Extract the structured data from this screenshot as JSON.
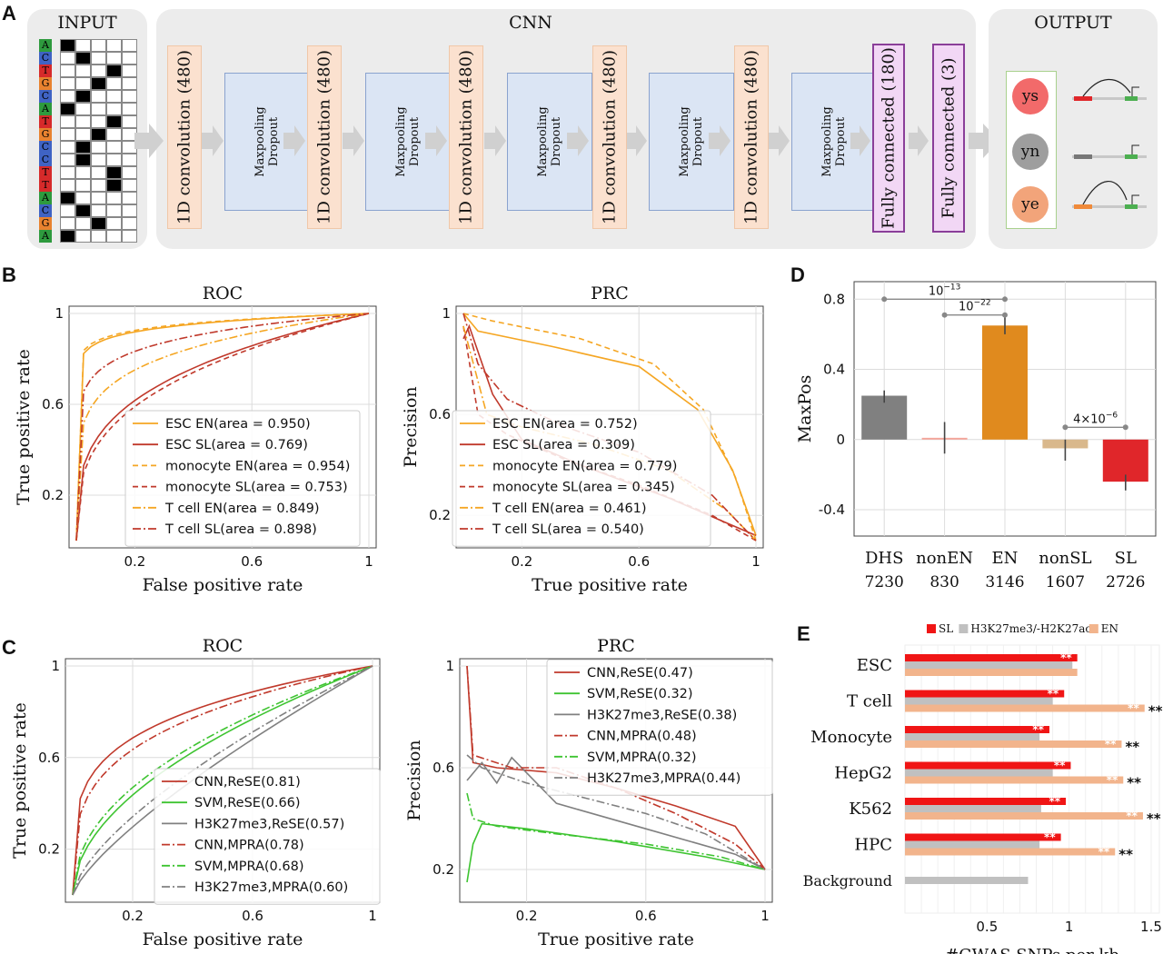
{
  "panel_labels": {
    "a": "A",
    "b": "B",
    "c": "C",
    "d": "D",
    "e": "E"
  },
  "panel_a": {
    "input_title": "INPUT",
    "cnn_title": "CNN",
    "output_title": "OUTPUT",
    "sequence": [
      "A",
      "C",
      "T",
      "G",
      "C",
      "A",
      "T",
      "G",
      "C",
      "C",
      "T",
      "T",
      "A",
      "C",
      "G",
      "A"
    ],
    "base_colors": {
      "A": "#2e9a3e",
      "C": "#3f63c4",
      "G": "#e8822f",
      "T": "#d62a2a"
    },
    "layers": [
      {
        "kind": "conv",
        "label": "1D convolution (480)"
      },
      {
        "kind": "pool",
        "label1": "Maxpooling",
        "label2": "Dropout"
      },
      {
        "kind": "conv",
        "label": "1D convolution (480)"
      },
      {
        "kind": "pool",
        "label1": "Maxpooling",
        "label2": "Dropout"
      },
      {
        "kind": "conv",
        "label": "1D convolution (480)"
      },
      {
        "kind": "pool",
        "label1": "Maxpooling",
        "label2": "Dropout"
      },
      {
        "kind": "conv",
        "label": "1D convolution (480)"
      },
      {
        "kind": "pool",
        "label1": "Maxpooling",
        "label2": "Dropout"
      },
      {
        "kind": "conv",
        "label": "1D convolution (480)"
      },
      {
        "kind": "pool",
        "label1": "Maxpooling",
        "label2": "Dropout"
      },
      {
        "kind": "fc",
        "label": "Fully connected (180)"
      },
      {
        "kind": "fc",
        "label": "Fully connected (3)"
      }
    ],
    "outputs": [
      {
        "label": "ys",
        "color": "#f26a6a"
      },
      {
        "label": "yn",
        "color": "#9e9e9e"
      },
      {
        "label": "ye",
        "color": "#f2a47a"
      }
    ]
  },
  "chart_data": [
    {
      "id": "B-ROC",
      "type": "line",
      "title": "ROC",
      "xlabel": "False positive rate",
      "ylabel": "True positive rate",
      "xlim": [
        0,
        1
      ],
      "ylim": [
        0,
        1
      ],
      "xticks": [
        "0.2",
        "0.6",
        "1"
      ],
      "yticks": [
        "0.2",
        "0.6",
        "1"
      ],
      "grid": true,
      "legend_position": "bottom-right",
      "series": [
        {
          "name": "ESC EN(area = 0.950)",
          "color": "#f5a623",
          "dash": "solid",
          "curve": "roc",
          "auc": 0.95
        },
        {
          "name": "ESC SL(area = 0.769)",
          "color": "#c0392b",
          "dash": "solid",
          "curve": "roc",
          "auc": 0.769
        },
        {
          "name": "monocyte EN(area = 0.954)",
          "color": "#f5a623",
          "dash": "dashed",
          "curve": "roc",
          "auc": 0.954
        },
        {
          "name": "monocyte SL(area = 0.753)",
          "color": "#c0392b",
          "dash": "dashed",
          "curve": "roc",
          "auc": 0.753
        },
        {
          "name": "T cell EN(area = 0.849)",
          "color": "#f5a623",
          "dash": "dashdot",
          "curve": "roc",
          "auc": 0.849
        },
        {
          "name": "T cell SL(area = 0.898)",
          "color": "#c0392b",
          "dash": "dashdot",
          "curve": "roc",
          "auc": 0.898
        }
      ]
    },
    {
      "id": "B-PRC",
      "type": "line",
      "title": "PRC",
      "xlabel": "True positive rate",
      "ylabel": "Precision",
      "xlim": [
        0,
        1
      ],
      "ylim": [
        0.1,
        1
      ],
      "xticks": [
        "0.2",
        "0.6",
        "1"
      ],
      "yticks": [
        "0.2",
        "0.6",
        "1"
      ],
      "grid": true,
      "legend_position": "center",
      "series": [
        {
          "name": "ESC EN(area = 0.752)",
          "color": "#f5a623",
          "dash": "solid",
          "points": [
            [
              0,
              1
            ],
            [
              0.05,
              0.93
            ],
            [
              0.3,
              0.87
            ],
            [
              0.6,
              0.79
            ],
            [
              0.8,
              0.62
            ],
            [
              0.92,
              0.38
            ],
            [
              1,
              0.12
            ]
          ]
        },
        {
          "name": "ESC SL(area = 0.309)",
          "color": "#c0392b",
          "dash": "solid",
          "points": [
            [
              0,
              0.9
            ],
            [
              0.02,
              0.95
            ],
            [
              0.1,
              0.68
            ],
            [
              0.2,
              0.5
            ],
            [
              0.4,
              0.4
            ],
            [
              0.7,
              0.27
            ],
            [
              0.9,
              0.17
            ],
            [
              1,
              0.12
            ]
          ]
        },
        {
          "name": "monocyte EN(area = 0.779)",
          "color": "#f5a623",
          "dash": "dashed",
          "points": [
            [
              0,
              1
            ],
            [
              0.1,
              0.97
            ],
            [
              0.4,
              0.9
            ],
            [
              0.65,
              0.8
            ],
            [
              0.82,
              0.62
            ],
            [
              0.93,
              0.35
            ],
            [
              1,
              0.1
            ]
          ]
        },
        {
          "name": "monocyte SL(area = 0.345)",
          "color": "#c0392b",
          "dash": "dashed",
          "points": [
            [
              0,
              0.95
            ],
            [
              0.05,
              0.6
            ],
            [
              0.15,
              0.52
            ],
            [
              0.35,
              0.42
            ],
            [
              0.6,
              0.32
            ],
            [
              0.85,
              0.2
            ],
            [
              1,
              0.1
            ]
          ]
        },
        {
          "name": "T cell EN(area = 0.461)",
          "color": "#f5a623",
          "dash": "dashdot",
          "points": [
            [
              0,
              0.95
            ],
            [
              0.08,
              0.6
            ],
            [
              0.2,
              0.55
            ],
            [
              0.45,
              0.48
            ],
            [
              0.7,
              0.38
            ],
            [
              0.9,
              0.22
            ],
            [
              1,
              0.1
            ]
          ]
        },
        {
          "name": "T cell SL(area = 0.540)",
          "color": "#c0392b",
          "dash": "dashdot",
          "points": [
            [
              0,
              1
            ],
            [
              0.05,
              0.8
            ],
            [
              0.15,
              0.66
            ],
            [
              0.35,
              0.55
            ],
            [
              0.6,
              0.45
            ],
            [
              0.85,
              0.28
            ],
            [
              1,
              0.1
            ]
          ]
        }
      ]
    },
    {
      "id": "C-ROC",
      "type": "line",
      "title": "ROC",
      "xlabel": "False positive rate",
      "ylabel": "True positive rate",
      "xlim": [
        0,
        1
      ],
      "ylim": [
        0,
        1
      ],
      "xticks": [
        "0.2",
        "0.6",
        "1"
      ],
      "yticks": [
        "0.2",
        "0.6",
        "1"
      ],
      "grid": true,
      "legend_position": "bottom-right",
      "series": [
        {
          "name": "CNN,ReSE(0.81)",
          "color": "#c0392b",
          "dash": "solid",
          "curve": "roc",
          "auc": 0.81
        },
        {
          "name": "SVM,ReSE(0.66)",
          "color": "#3ec431",
          "dash": "solid",
          "curve": "roc",
          "auc": 0.66
        },
        {
          "name": "H3K27me3,ReSE(0.57)",
          "color": "#808080",
          "dash": "solid",
          "curve": "roc",
          "auc": 0.57
        },
        {
          "name": "CNN,MPRA(0.78)",
          "color": "#c0392b",
          "dash": "dashdot",
          "curve": "roc",
          "auc": 0.78
        },
        {
          "name": "SVM,MPRA(0.68)",
          "color": "#3ec431",
          "dash": "dashdot",
          "curve": "roc",
          "auc": 0.68
        },
        {
          "name": "H3K27me3,MPRA(0.60)",
          "color": "#808080",
          "dash": "dashdot",
          "curve": "roc",
          "auc": 0.6
        }
      ]
    },
    {
      "id": "C-PRC",
      "type": "line",
      "title": "PRC",
      "xlabel": "True positive rate",
      "ylabel": "Precision",
      "xlim": [
        0,
        1
      ],
      "ylim": [
        0.1,
        1
      ],
      "xticks": [
        "0.2",
        "0.6",
        "1"
      ],
      "yticks": [
        "0.2",
        "0.6",
        "1"
      ],
      "grid": true,
      "legend_position": "top-right",
      "series": [
        {
          "name": "CNN,ReSE(0.47)",
          "color": "#c0392b",
          "dash": "solid",
          "points": [
            [
              0,
              1
            ],
            [
              0.02,
              0.62
            ],
            [
              0.1,
              0.6
            ],
            [
              0.3,
              0.58
            ],
            [
              0.5,
              0.52
            ],
            [
              0.7,
              0.45
            ],
            [
              0.9,
              0.37
            ],
            [
              1,
              0.2
            ]
          ]
        },
        {
          "name": "SVM,ReSE(0.32)",
          "color": "#3ec431",
          "dash": "solid",
          "points": [
            [
              0,
              0.15
            ],
            [
              0.02,
              0.3
            ],
            [
              0.05,
              0.38
            ],
            [
              0.2,
              0.36
            ],
            [
              0.5,
              0.31
            ],
            [
              0.8,
              0.25
            ],
            [
              1,
              0.2
            ]
          ]
        },
        {
          "name": "H3K27me3,ReSE(0.38)",
          "color": "#808080",
          "dash": "solid",
          "points": [
            [
              0,
              0.55
            ],
            [
              0.05,
              0.62
            ],
            [
              0.1,
              0.54
            ],
            [
              0.15,
              0.64
            ],
            [
              0.3,
              0.46
            ],
            [
              0.6,
              0.36
            ],
            [
              0.9,
              0.26
            ],
            [
              1,
              0.2
            ]
          ]
        },
        {
          "name": "CNN,MPRA(0.48)",
          "color": "#c0392b",
          "dash": "dashdot",
          "points": [
            [
              0,
              1
            ],
            [
              0.02,
              0.65
            ],
            [
              0.15,
              0.6
            ],
            [
              0.3,
              0.6
            ],
            [
              0.5,
              0.52
            ],
            [
              0.7,
              0.42
            ],
            [
              0.9,
              0.3
            ],
            [
              1,
              0.2
            ]
          ]
        },
        {
          "name": "SVM,MPRA(0.32)",
          "color": "#3ec431",
          "dash": "dashdot",
          "points": [
            [
              0,
              0.5
            ],
            [
              0.02,
              0.4
            ],
            [
              0.1,
              0.37
            ],
            [
              0.3,
              0.34
            ],
            [
              0.6,
              0.3
            ],
            [
              0.85,
              0.25
            ],
            [
              1,
              0.2
            ]
          ]
        },
        {
          "name": "H3K27me3,MPRA(0.44)",
          "color": "#808080",
          "dash": "dashdot",
          "points": [
            [
              0,
              0.65
            ],
            [
              0.05,
              0.6
            ],
            [
              0.2,
              0.54
            ],
            [
              0.4,
              0.48
            ],
            [
              0.6,
              0.42
            ],
            [
              0.8,
              0.34
            ],
            [
              1,
              0.2
            ]
          ]
        }
      ]
    },
    {
      "id": "D",
      "type": "bar",
      "ylabel": "MaxPos",
      "ylim": [
        -0.55,
        0.9
      ],
      "yticks": [
        "0.8",
        "0.4",
        "0",
        "-0.4"
      ],
      "grid": true,
      "categories": [
        "DHS",
        "nonEN",
        "EN",
        "nonSL",
        "SL"
      ],
      "counts": [
        "7230",
        "830",
        "3146",
        "1607",
        "2726"
      ],
      "values": [
        0.25,
        0.01,
        0.65,
        -0.05,
        -0.24
      ],
      "error_low": [
        0.21,
        -0.08,
        0.6,
        -0.12,
        -0.29
      ],
      "error_high": [
        0.28,
        0.1,
        0.72,
        0.0,
        -0.2
      ],
      "colors": [
        "#808080",
        "#f4a59a",
        "#e08a1e",
        "#d9b88c",
        "#e0262a"
      ],
      "annotations": [
        {
          "from": 0,
          "to": 2,
          "y": 0.8,
          "label_base": "10",
          "label_exp": "−13"
        },
        {
          "from": 1,
          "to": 2,
          "y": 0.71,
          "label_base": "10",
          "label_exp": "−22"
        },
        {
          "from": 3,
          "to": 4,
          "y": 0.07,
          "label_base": "4×10",
          "label_exp": "−6"
        }
      ]
    },
    {
      "id": "E",
      "type": "bar",
      "orientation": "horizontal",
      "xlabel": "#GWAS SNPs per kb",
      "xlim": [
        0,
        1.55
      ],
      "xticks": [
        "0.5",
        "1",
        "1.5"
      ],
      "legend_position": "top",
      "categories": [
        "ESC",
        "T cell",
        "Monocyte",
        "HepG2",
        "K562",
        "HPC",
        "Background"
      ],
      "series": [
        {
          "name": "SL",
          "color": "#f01515",
          "values": [
            1.05,
            0.97,
            0.88,
            1.01,
            0.98,
            0.95,
            null
          ],
          "stars": [
            "**",
            "**",
            "**",
            "**",
            "**",
            "**",
            ""
          ]
        },
        {
          "name": "H3K27me3/-H2K27ac",
          "color": "#c0c0c0",
          "values": [
            1.02,
            0.9,
            0.82,
            0.9,
            0.83,
            0.82,
            0.75
          ],
          "stars": [
            "",
            "",
            "",
            "",
            "",
            "",
            ""
          ]
        },
        {
          "name": "EN",
          "color": "#f2b48c",
          "values": [
            1.05,
            1.46,
            1.32,
            1.33,
            1.45,
            1.28,
            null
          ],
          "stars": [
            "",
            "**",
            "**",
            "**",
            "**",
            "**",
            ""
          ],
          "outer_stars": [
            "",
            "**",
            "**",
            "**",
            "**",
            "**",
            ""
          ]
        }
      ]
    }
  ]
}
